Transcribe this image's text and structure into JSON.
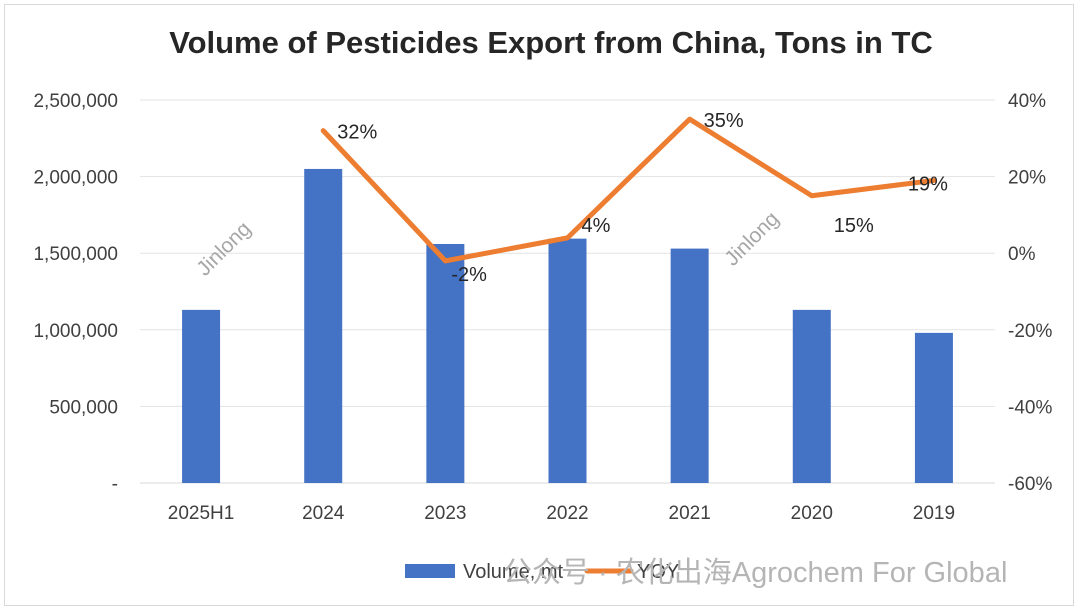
{
  "chart_data": {
    "type": "bar+line",
    "title": "Volume of Pesticides Export from China, Tons in TC",
    "categories": [
      "2025H1",
      "2024",
      "2023",
      "2022",
      "2021",
      "2020",
      "2019"
    ],
    "series": [
      {
        "name": "Volume, mt",
        "type": "bar",
        "axis": "left",
        "color": "#4472c4",
        "values": [
          1130000,
          2050000,
          1560000,
          1595000,
          1530000,
          1130000,
          980000
        ]
      },
      {
        "name": "YOY",
        "type": "line",
        "axis": "right",
        "color": "#ed7d31",
        "values": [
          null,
          32,
          -2,
          4,
          35,
          15,
          19
        ],
        "labels": [
          "",
          "32%",
          "-2%",
          "4%",
          "35%",
          "15%",
          "19%"
        ]
      }
    ],
    "y_left": {
      "range": [
        0,
        2500000
      ],
      "ticks": [
        0,
        500000,
        1000000,
        1500000,
        2000000,
        2500000
      ],
      "tick_labels": [
        "-",
        "500,000",
        "1,000,000",
        "1,500,000",
        "2,000,000",
        "2,500,000"
      ]
    },
    "y_right": {
      "range": [
        -60,
        40
      ],
      "ticks": [
        -60,
        -40,
        -20,
        0,
        20,
        40
      ],
      "tick_labels": [
        "-60%",
        "-40%",
        "-20%",
        "0%",
        "20%",
        "40%"
      ]
    },
    "grid": true,
    "legend": "bottom"
  },
  "watermarks": {
    "jinlong": "Jinlong",
    "account": "公众号 · 农化出海Agrochem For Global"
  }
}
